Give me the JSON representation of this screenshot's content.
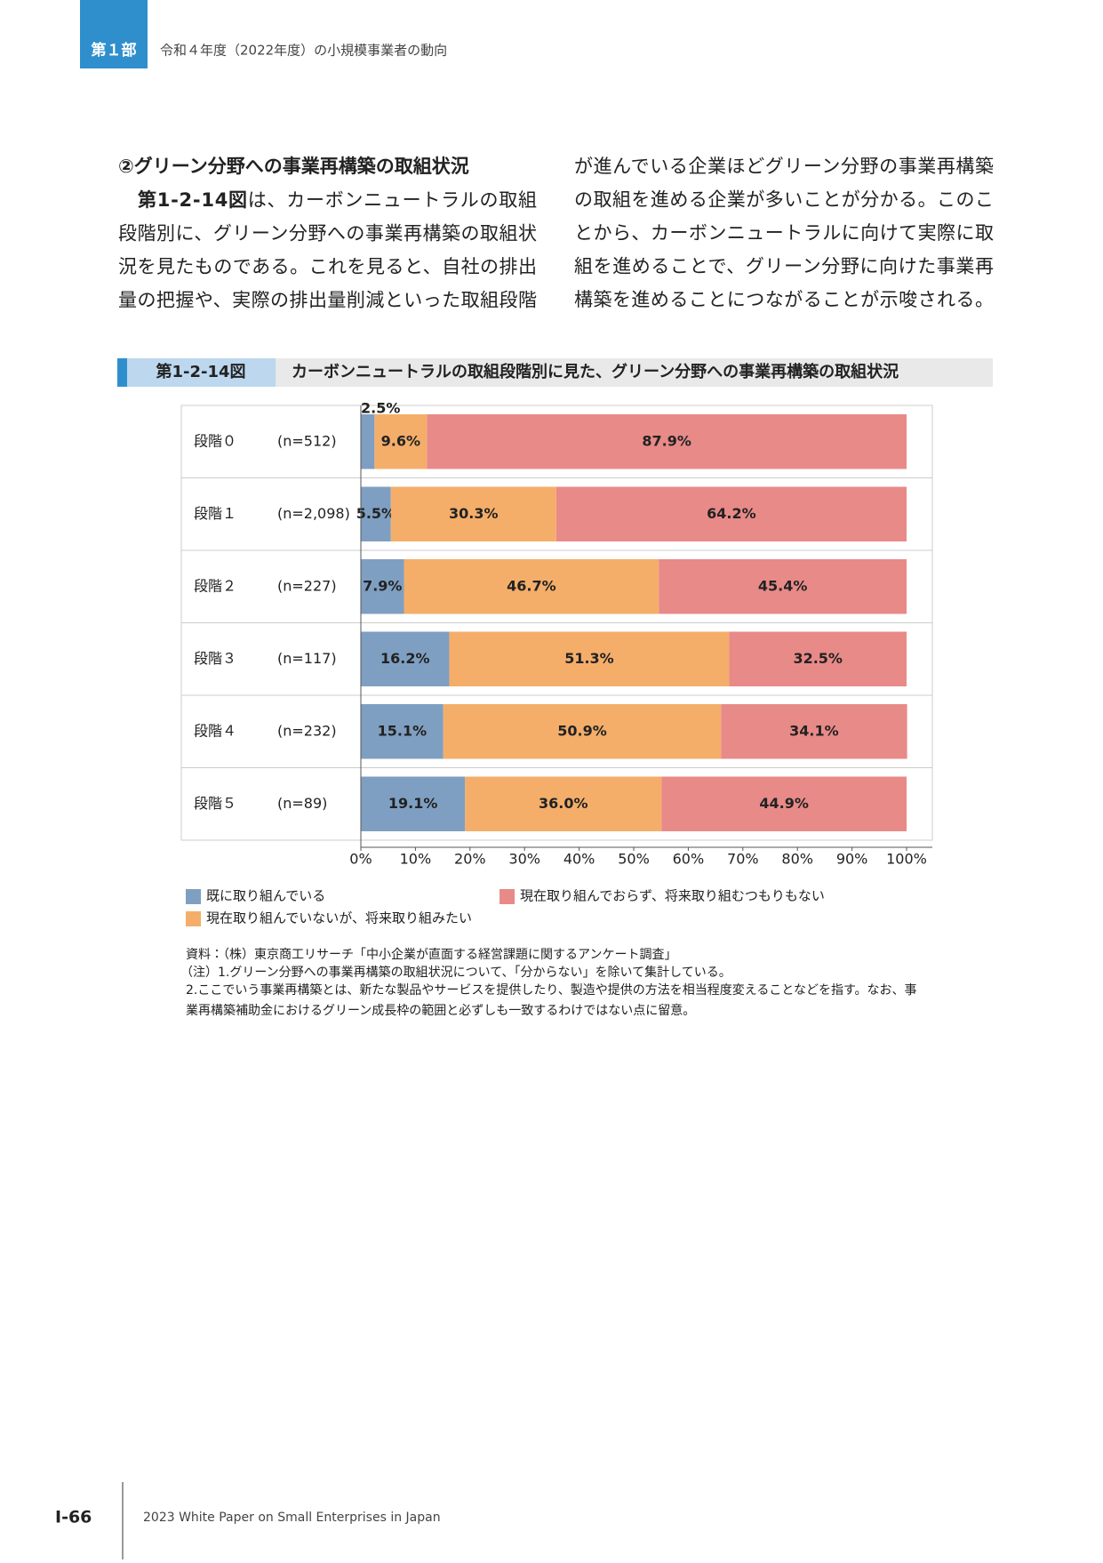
{
  "header": {
    "part": "第１部",
    "title": "令和４年度（2022年度）の小規模事業者の動向"
  },
  "section": {
    "heading": "②グリーン分野への事業再構築の取組状況",
    "intro_bold": "第1-2-14図",
    "left_lines": [
      "は、カーボンニュートラルの取組",
      "段階別に、グリーン分野への事業再構築の取組状",
      "況を見たものである。これを見ると、自社の排出",
      "量の把握や、実際の排出量削減といった取組段階"
    ],
    "right_lines": [
      "が進んでいる企業ほどグリーン分野の事業再構築",
      "の取組を進める企業が多いことが分かる。このこ",
      "とから、カーボンニュートラルに向けて実際に取",
      "組を進めることで、グリーン分野に向けた事業再",
      "構築を進めることにつながることが示唆される。"
    ]
  },
  "figure": {
    "label": "第1-2-14図",
    "title": "カーボンニュートラルの取組段階別に見た、グリーン分野への事業再構築の取組状況"
  },
  "chart_data": {
    "type": "stacked_bar_horizontal",
    "categories": [
      "段階０",
      "段階１",
      "段階２",
      "段階３",
      "段階４",
      "段階５"
    ],
    "n_labels": [
      "(n=512)",
      "(n=2,098)",
      "(n=227)",
      "(n=117)",
      "(n=232)",
      "(n=89)"
    ],
    "series": [
      {
        "name": "既に取り組んでいる",
        "color": "#7f9fc2",
        "values": [
          2.5,
          5.5,
          7.9,
          16.2,
          15.1,
          19.1
        ],
        "value_labels": [
          "2.5%",
          "5.5%",
          "7.9%",
          "16.2%",
          "15.1%",
          "19.1%"
        ]
      },
      {
        "name": "現在取り組んでいないが、将来取り組みたい",
        "color": "#f4ae6a",
        "values": [
          9.6,
          30.3,
          46.7,
          51.3,
          50.9,
          36.0
        ],
        "value_labels": [
          "9.6%",
          "30.3%",
          "46.7%",
          "51.3%",
          "50.9%",
          "36.0%"
        ]
      },
      {
        "name": "現在取り組んでおらず、将来取り組むつもりもない",
        "color": "#e88a88",
        "values": [
          87.9,
          64.2,
          45.4,
          32.5,
          34.1,
          44.9
        ],
        "value_labels": [
          "87.9%",
          "64.2%",
          "45.4%",
          "32.5%",
          "34.1%",
          "44.9%"
        ]
      }
    ],
    "xlim": [
      0,
      100
    ],
    "xticks": [
      {
        "value": 0,
        "label": "0%"
      },
      {
        "value": 10,
        "label": "10%"
      },
      {
        "value": 20,
        "label": "20%"
      },
      {
        "value": 30,
        "label": "30%"
      },
      {
        "value": 40,
        "label": "40%"
      },
      {
        "value": 50,
        "label": "50%"
      },
      {
        "value": 60,
        "label": "60%"
      },
      {
        "value": 70,
        "label": "70%"
      },
      {
        "value": 80,
        "label": "80%"
      },
      {
        "value": 90,
        "label": "90%"
      },
      {
        "value": 100,
        "label": "100%"
      }
    ]
  },
  "notes": [
    "資料：（株）東京商工リサーチ「中小企業が直面する経営課題に関するアンケート調査」",
    "（注）1.グリーン分野への事業再構築の取組状況について、「分からない」を除いて集計している。",
    "2.ここでいう事業再構築とは、新たな製品やサービスを提供したり、製造や提供の方法を相当程度変えることなどを指す。なお、事",
    "業再構築補助金におけるグリーン成長枠の範囲と必ずしも一致するわけではない点に留意。"
  ],
  "footer": {
    "page": "I-66",
    "publication": "2023 White Paper on Small Enterprises in Japan"
  }
}
